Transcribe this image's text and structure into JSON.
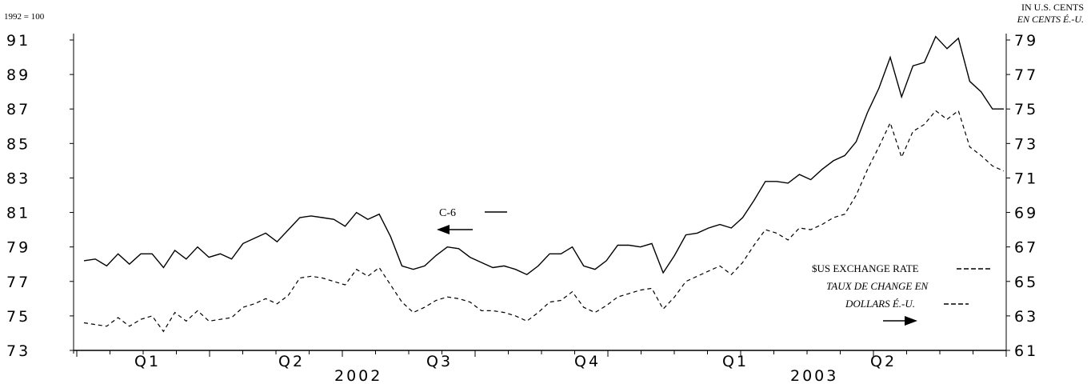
{
  "chart_data": {
    "type": "line",
    "left_axis_note": "1992 = 100",
    "right_axis_note_1": "IN U.S. CENTS",
    "right_axis_note_2": "EN CENTS É.-U.",
    "y_left": {
      "ticks": [
        "73",
        "75",
        "77",
        "79",
        "81",
        "83",
        "85",
        "87",
        "89",
        "91"
      ],
      "ylim": [
        73,
        91
      ]
    },
    "y_right": {
      "ticks": [
        "61",
        "63",
        "65",
        "67",
        "69",
        "71",
        "73",
        "75",
        "77",
        "79"
      ],
      "ylim": [
        61,
        79
      ]
    },
    "x_quarter_labels": [
      "Q1",
      "Q2",
      "Q3",
      "Q4",
      "Q1",
      "Q2"
    ],
    "x_year_labels": [
      "2002",
      "2003"
    ],
    "series": [
      {
        "name": "C-6",
        "axis": "left",
        "style": "solid",
        "color": "#000000",
        "values": [
          78.2,
          78.3,
          77.9,
          78.6,
          78.0,
          78.6,
          78.6,
          77.8,
          78.8,
          78.3,
          79.0,
          78.4,
          78.6,
          78.3,
          79.2,
          79.5,
          79.8,
          79.3,
          80.0,
          80.7,
          80.8,
          80.7,
          80.6,
          80.2,
          81.0,
          80.6,
          80.9,
          79.6,
          77.9,
          77.7,
          77.9,
          78.5,
          79.0,
          78.9,
          78.4,
          78.1,
          77.8,
          77.9,
          77.7,
          77.4,
          77.9,
          78.6,
          78.6,
          79.0,
          77.9,
          77.7,
          78.2,
          79.1,
          79.1,
          79.0,
          79.2,
          77.5,
          78.5,
          79.7,
          79.8,
          80.1,
          80.3,
          80.1,
          80.7,
          81.7,
          82.8,
          82.8,
          82.7,
          83.2,
          82.9,
          83.5,
          84.0,
          84.3,
          85.1,
          86.8,
          88.2,
          90.0,
          87.7,
          89.5,
          89.7,
          91.2,
          90.5,
          91.1,
          88.6,
          88.0,
          87.0,
          87.0
        ]
      },
      {
        "name": "$US EXCHANGE RATE",
        "name_fr_1": "TAUX DE CHANGE EN",
        "name_fr_2": "DOLLARS É.-U.",
        "axis": "right",
        "style": "dashed",
        "color": "#000000",
        "values": [
          62.6,
          62.5,
          62.4,
          62.9,
          62.4,
          62.8,
          63.0,
          62.1,
          63.2,
          62.7,
          63.3,
          62.7,
          62.8,
          62.9,
          63.5,
          63.7,
          64.0,
          63.7,
          64.2,
          65.2,
          65.3,
          65.2,
          65.0,
          64.8,
          65.7,
          65.3,
          65.8,
          64.8,
          63.8,
          63.2,
          63.5,
          63.9,
          64.1,
          64.0,
          63.8,
          63.3,
          63.3,
          63.2,
          63.0,
          62.7,
          63.2,
          63.8,
          63.9,
          64.4,
          63.5,
          63.2,
          63.6,
          64.1,
          64.3,
          64.5,
          64.6,
          63.4,
          64.1,
          65.0,
          65.3,
          65.6,
          65.9,
          65.4,
          66.1,
          67.1,
          68.0,
          67.8,
          67.4,
          68.1,
          68.0,
          68.3,
          68.7,
          68.9,
          70.0,
          71.5,
          72.8,
          74.2,
          72.2,
          73.7,
          74.1,
          74.9,
          74.4,
          74.9,
          72.8,
          72.3,
          71.7,
          71.4
        ]
      }
    ],
    "annotations": {
      "c6_label": "C-6",
      "exchange_label": "$US EXCHANGE RATE",
      "taux_label_1": "TAUX DE CHANGE EN",
      "taux_label_2": "DOLLARS É.-U."
    },
    "grid": false
  }
}
